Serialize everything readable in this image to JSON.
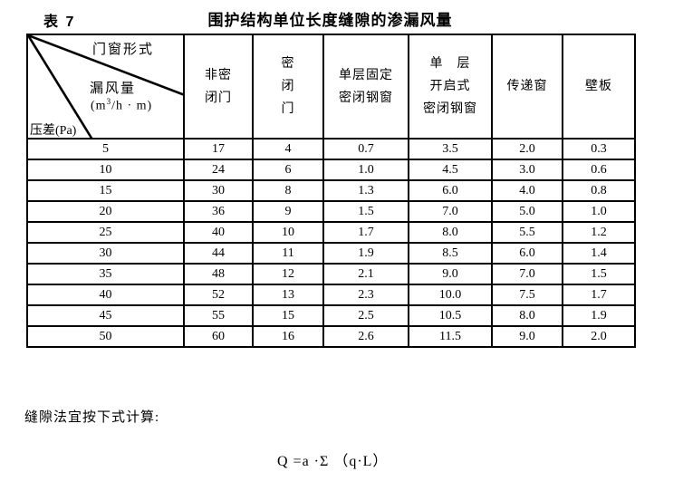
{
  "page": {
    "table_label": "表 7",
    "table_title": "围护结构单位长度缝隙的渗漏风量",
    "note": "缝隙法宜按下式计算:",
    "formula": "Q =a ·Σ （q·L）"
  },
  "corner": {
    "form_label": "门窗形式",
    "leakage_label": "漏风量",
    "unit_prefix": "(m",
    "unit_sup": "3",
    "unit_suffix": "/h · m)",
    "pressure_label": "压差(Pa)"
  },
  "columns": [
    {
      "lines": [
        "非密",
        "闭门"
      ]
    },
    {
      "lines": [
        "密",
        "闭",
        "门"
      ]
    },
    {
      "lines": [
        "单层固定",
        "密闭钢窗"
      ]
    },
    {
      "lines": [
        "单　层",
        "开启式",
        "密闭钢窗"
      ]
    },
    {
      "lines": [
        "传递窗"
      ]
    },
    {
      "lines": [
        "壁板"
      ]
    }
  ],
  "rows": [
    {
      "pressure": "5",
      "values": [
        "17",
        "4",
        "0.7",
        "3.5",
        "2.0",
        "0.3"
      ]
    },
    {
      "pressure": "10",
      "values": [
        "24",
        "6",
        "1.0",
        "4.5",
        "3.0",
        "0.6"
      ]
    },
    {
      "pressure": "15",
      "values": [
        "30",
        "8",
        "1.3",
        "6.0",
        "4.0",
        "0.8"
      ]
    },
    {
      "pressure": "20",
      "values": [
        "36",
        "9",
        "1.5",
        "7.0",
        "5.0",
        "1.0"
      ]
    },
    {
      "pressure": "25",
      "values": [
        "40",
        "10",
        "1.7",
        "8.0",
        "5.5",
        "1.2"
      ]
    },
    {
      "pressure": "30",
      "values": [
        "44",
        "11",
        "1.9",
        "8.5",
        "6.0",
        "1.4"
      ]
    },
    {
      "pressure": "35",
      "values": [
        "48",
        "12",
        "2.1",
        "9.0",
        "7.0",
        "1.5"
      ]
    },
    {
      "pressure": "40",
      "values": [
        "52",
        "13",
        "2.3",
        "10.0",
        "7.5",
        "1.7"
      ]
    },
    {
      "pressure": "45",
      "values": [
        "55",
        "15",
        "2.5",
        "10.5",
        "8.0",
        "1.9"
      ]
    },
    {
      "pressure": "50",
      "values": [
        "60",
        "16",
        "2.6",
        "11.5",
        "9.0",
        "2.0"
      ]
    }
  ]
}
